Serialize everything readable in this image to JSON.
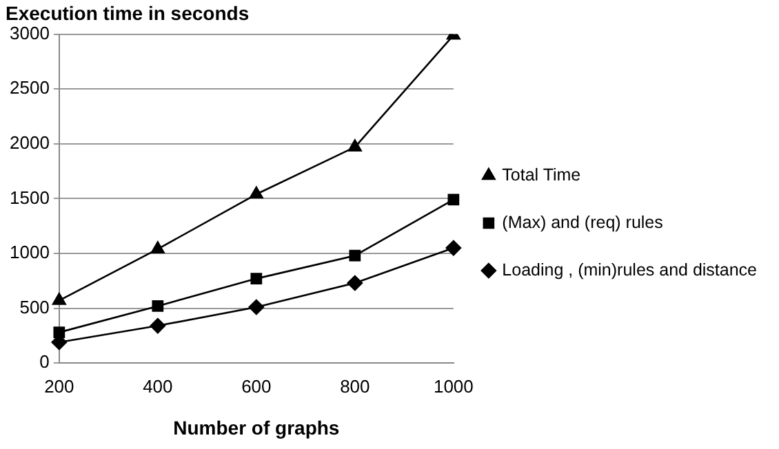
{
  "chart_data": {
    "type": "line",
    "title": "Execution time in seconds",
    "xlabel": "Number of graphs",
    "categories": [
      "200",
      "400",
      "600",
      "800",
      "1000"
    ],
    "series": [
      {
        "name": "Total Time",
        "color": "#000000",
        "marker": "triangle",
        "values": [
          570,
          1040,
          1540,
          1970,
          2990
        ]
      },
      {
        "name": "(Max) and (req) rules",
        "color": "#000000",
        "marker": "square",
        "values": [
          280,
          520,
          770,
          980,
          1490
        ]
      },
      {
        "name": "Loading , (min)rules and distance",
        "color": "#000000",
        "marker": "diamond",
        "values": [
          190,
          340,
          510,
          730,
          1050
        ]
      }
    ],
    "ylim": [
      0,
      3000
    ],
    "yticks": [
      0,
      500,
      1000,
      1500,
      2000,
      2500,
      3000
    ],
    "grid": "y",
    "legend": "right",
    "line_style": "solid"
  }
}
